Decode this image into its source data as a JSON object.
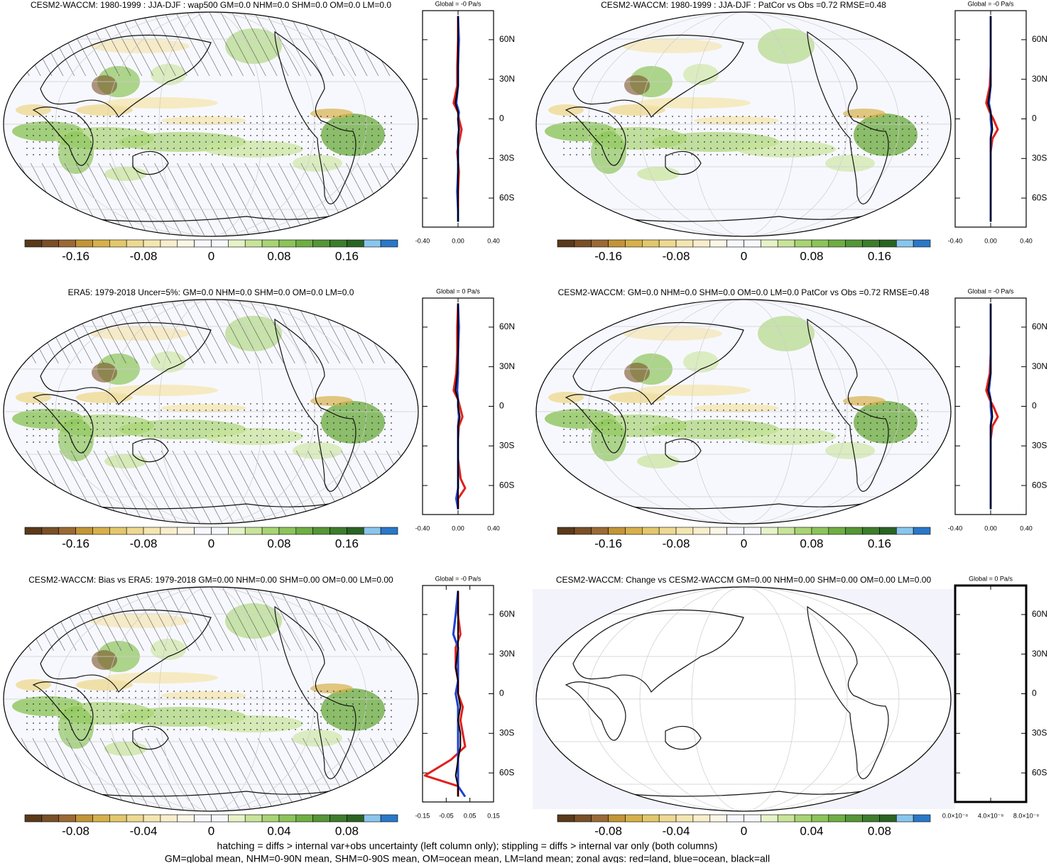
{
  "chart_data": [
    {
      "type": "map",
      "title": "CESM2-WACCM: 1980-1999 : JJA-DJF : wap500 GM=0.0 NHM=0.0 SHM=0.0 OM=0.0 LM=0.0",
      "hatching": true,
      "clim": [
        -0.22,
        0.22
      ],
      "cticks": [
        -0.16,
        -0.08,
        0,
        0.08,
        0.16
      ],
      "zonal": {
        "title": "Global = -0 Pa/s",
        "xlim": [
          -0.4,
          0.4
        ],
        "xticks": [
          {
            "value": -0.4,
            "label": "-0.40"
          },
          {
            "value": 0,
            "label": "0.00"
          },
          {
            "value": 0.4,
            "label": "0.40"
          }
        ],
        "ylim": [
          -82,
          82
        ],
        "yticks": [
          {
            "value": 60,
            "label": "60N"
          },
          {
            "value": 30,
            "label": "30N"
          },
          0,
          {
            "value": -30,
            "label": "30S"
          },
          {
            "value": -60,
            "label": "60S"
          }
        ],
        "lat": [
          78,
          60,
          40,
          25,
          12,
          5,
          0,
          -8,
          -15,
          -25,
          -40,
          -55,
          -70,
          -78
        ],
        "series": [
          {
            "name": "land",
            "color": "#e0201c",
            "values": [
              0,
              0,
              -0.01,
              -0.01,
              -0.05,
              0,
              0.01,
              0.04,
              0.02,
              -0.01,
              0.01,
              0,
              0,
              0
            ]
          },
          {
            "name": "ocean",
            "color": "#1f3fd0",
            "values": [
              0,
              0.01,
              0,
              0,
              -0.02,
              0.01,
              0,
              0.01,
              0,
              0,
              0,
              -0.01,
              0,
              0
            ]
          },
          {
            "name": "all",
            "color": "#000000",
            "values": [
              0,
              0,
              0,
              0,
              -0.03,
              0,
              0,
              0.01,
              0,
              0,
              0,
              0,
              0,
              0
            ]
          }
        ]
      }
    },
    {
      "type": "map",
      "title": "CESM2-WACCM: 1980-1999 : JJA-DJF : PatCor vs Obs =0.72 RMSE=0.48",
      "hatching": false,
      "clim": [
        -0.22,
        0.22
      ],
      "cticks": [
        -0.16,
        -0.08,
        0,
        0.08,
        0.16
      ],
      "zonal": {
        "title": "Global = -0 Pa/s",
        "xlim": [
          -0.4,
          0.4
        ],
        "xticks": [
          {
            "value": -0.4,
            "label": "-0.40"
          },
          {
            "value": 0,
            "label": "0.00"
          },
          {
            "value": 0.4,
            "label": "0.40"
          }
        ],
        "ylim": [
          -82,
          82
        ],
        "yticks": [
          {
            "value": 60,
            "label": "60N"
          },
          {
            "value": 30,
            "label": "30N"
          },
          0,
          {
            "value": -30,
            "label": "30S"
          },
          {
            "value": -60,
            "label": "60S"
          }
        ],
        "lat": [
          78,
          60,
          40,
          25,
          12,
          5,
          0,
          -8,
          -15,
          -25,
          -40,
          -55,
          -70,
          -78
        ],
        "series": [
          {
            "name": "land",
            "color": "#e0201c",
            "values": [
              0,
              0,
              0,
              -0.01,
              -0.05,
              -0.01,
              0.03,
              0.08,
              0.02,
              0,
              0,
              0,
              0,
              0
            ]
          },
          {
            "name": "ocean",
            "color": "#1f3fd0",
            "values": [
              0,
              0,
              0,
              0,
              -0.02,
              0,
              0,
              0.01,
              0,
              0,
              0,
              0,
              0,
              0
            ]
          },
          {
            "name": "all",
            "color": "#000000",
            "values": [
              0,
              0,
              0,
              0,
              -0.03,
              0,
              0.01,
              0.02,
              0,
              0,
              0,
              0,
              0,
              0
            ]
          }
        ]
      }
    },
    {
      "type": "map",
      "title": "ERA5: 1979-2018 Uncer=5%: GM=0.0 NHM=0.0 SHM=0.0 OM=0.0 LM=0.0",
      "hatching": true,
      "clim": [
        -0.22,
        0.22
      ],
      "cticks": [
        -0.16,
        -0.08,
        0,
        0.08,
        0.16
      ],
      "zonal": {
        "title": "Global = 0 Pa/s",
        "xlim": [
          -0.4,
          0.4
        ],
        "xticks": [
          {
            "value": -0.4,
            "label": "-0.40"
          },
          {
            "value": 0,
            "label": "0.00"
          },
          {
            "value": 0.4,
            "label": "0.40"
          }
        ],
        "ylim": [
          -82,
          82
        ],
        "yticks": [
          {
            "value": 60,
            "label": "60N"
          },
          {
            "value": 30,
            "label": "30N"
          },
          0,
          {
            "value": -30,
            "label": "30S"
          },
          {
            "value": -60,
            "label": "60S"
          }
        ],
        "lat": [
          78,
          60,
          40,
          25,
          12,
          5,
          0,
          -8,
          -15,
          -25,
          -40,
          -55,
          -62,
          -70,
          -78
        ],
        "series": [
          {
            "name": "land",
            "color": "#e0201c",
            "values": [
              0,
              -0.01,
              -0.01,
              -0.02,
              -0.05,
              0,
              0.02,
              0.05,
              0.01,
              0,
              0,
              0.03,
              0.08,
              0,
              0
            ]
          },
          {
            "name": "ocean",
            "color": "#1f3fd0",
            "values": [
              0,
              0.01,
              0,
              0,
              -0.01,
              0,
              0,
              0.01,
              0,
              0,
              0,
              0,
              0,
              -0.02,
              0
            ]
          },
          {
            "name": "all",
            "color": "#000000",
            "values": [
              0,
              0,
              0,
              -0.01,
              -0.03,
              0,
              0,
              0.02,
              0,
              0,
              0,
              0,
              0,
              0,
              0
            ]
          }
        ]
      }
    },
    {
      "type": "map",
      "title": "CESM2-WACCM: GM=0.0 NHM=0.0 SHM=0.0 OM=0.0 LM=0.0 PatCor vs Obs =0.72 RMSE=0.48",
      "hatching": false,
      "clim": [
        -0.22,
        0.22
      ],
      "cticks": [
        -0.16,
        -0.08,
        0,
        0.08,
        0.16
      ],
      "zonal": {
        "title": "Global = -0 Pa/s",
        "xlim": [
          -0.4,
          0.4
        ],
        "xticks": [
          {
            "value": -0.4,
            "label": "-0.40"
          },
          {
            "value": 0,
            "label": "0.00"
          },
          {
            "value": 0.4,
            "label": "0.40"
          }
        ],
        "ylim": [
          -82,
          82
        ],
        "yticks": [
          {
            "value": 60,
            "label": "60N"
          },
          {
            "value": 30,
            "label": "30N"
          },
          0,
          {
            "value": -30,
            "label": "30S"
          },
          {
            "value": -60,
            "label": "60S"
          }
        ],
        "lat": [
          78,
          60,
          40,
          25,
          12,
          5,
          0,
          -8,
          -15,
          -25,
          -40,
          -55,
          -70,
          -78
        ],
        "series": [
          {
            "name": "land",
            "color": "#e0201c",
            "values": [
              0,
              0,
              0,
              -0.01,
              -0.05,
              -0.01,
              0.03,
              0.08,
              0.02,
              0,
              0,
              0,
              0,
              0
            ]
          },
          {
            "name": "ocean",
            "color": "#1f3fd0",
            "values": [
              0,
              0,
              0,
              0,
              -0.02,
              0,
              0,
              0.01,
              0,
              0,
              0,
              0,
              0,
              0
            ]
          },
          {
            "name": "all",
            "color": "#000000",
            "values": [
              0,
              0,
              0,
              0,
              -0.03,
              0,
              0.01,
              0.02,
              0,
              0,
              0,
              0,
              0,
              0
            ]
          }
        ]
      }
    },
    {
      "type": "map",
      "title": "CESM2-WACCM: Bias vs ERA5: 1979-2018 GM=0.00 NHM=0.00 SHM=0.00 OM=0.00 LM=0.00",
      "hatching": true,
      "clim": [
        -0.11,
        0.11
      ],
      "cticks": [
        -0.08,
        -0.04,
        0,
        0.04,
        0.08
      ],
      "zonal": {
        "title": "Global = -0 Pa/s",
        "xlim": [
          -0.15,
          0.15
        ],
        "xticks": [
          {
            "value": -0.15,
            "label": "-0.15"
          },
          {
            "value": -0.05,
            "label": "-0.05"
          },
          {
            "value": 0.05,
            "label": "0.05"
          },
          {
            "value": 0.15,
            "label": "0.15"
          }
        ],
        "ylim": [
          -82,
          82
        ],
        "yticks": [
          {
            "value": 60,
            "label": "60N"
          },
          {
            "value": 30,
            "label": "30N"
          },
          0,
          {
            "value": -30,
            "label": "30S"
          },
          {
            "value": -60,
            "label": "60S"
          }
        ],
        "lat": [
          78,
          60,
          45,
          35,
          20,
          10,
          0,
          -10,
          -20,
          -30,
          -40,
          -50,
          -62,
          -70,
          -78
        ],
        "series": [
          {
            "name": "land",
            "color": "#e0201c",
            "values": [
              0,
              0,
              0.01,
              -0.01,
              -0.01,
              0,
              0,
              0.02,
              0.01,
              0.02,
              0.03,
              -0.03,
              -0.14,
              0,
              0
            ]
          },
          {
            "name": "ocean",
            "color": "#1f3fd0",
            "values": [
              0,
              -0.01,
              -0.02,
              0,
              0,
              0,
              -0.01,
              0,
              0,
              0,
              0,
              0,
              0,
              0,
              0.03
            ]
          },
          {
            "name": "all",
            "color": "#000000",
            "values": [
              0,
              0,
              0,
              0,
              -0.01,
              0,
              0,
              0.01,
              0,
              0.01,
              0.01,
              0,
              -0.01,
              0,
              0
            ]
          }
        ]
      }
    },
    {
      "type": "map",
      "title": "CESM2-WACCM: Change vs CESM2-WACCM GM=0.00 NHM=0.00 SHM=0.00 OM=0.00 LM=0.00",
      "hatching": false,
      "empty": true,
      "clim": [
        -0.11,
        0.11
      ],
      "cticks": [
        -0.08,
        -0.04,
        0,
        0.04,
        0.08
      ],
      "zonal": {
        "title": "Global = 0 Pa/s",
        "xlim": [
          0,
          8e-08
        ],
        "xticks": [
          {
            "value": 0,
            "label": "0.0×10⁻⁸"
          },
          {
            "value": 4e-08,
            "label": "4.0×10⁻⁸"
          },
          {
            "value": 8e-08,
            "label": "8.0×10⁻⁸"
          }
        ],
        "ylim": [
          -82,
          82
        ],
        "yticks": [
          {
            "value": 60,
            "label": "60N"
          },
          {
            "value": 30,
            "label": "30N"
          },
          0,
          {
            "value": -30,
            "label": "30S"
          },
          {
            "value": -60,
            "label": "60S"
          }
        ],
        "lat": [],
        "series": []
      }
    }
  ],
  "colors": [
    "#5a3a1a",
    "#7a5028",
    "#9a6a35",
    "#c29538",
    "#d6b04a",
    "#e3c76c",
    "#eed992",
    "#f4e6b2",
    "#f8eecc",
    "#fbf6e6",
    "#f7f8fd",
    "#f7f8fd",
    "#e6f2c8",
    "#c8e49a",
    "#a8d474",
    "#8cc45a",
    "#6fae45",
    "#559637",
    "#3e7d2d",
    "#2a6424",
    "#8ac6ec",
    "#2a78c8"
  ],
  "footer": [
    "hatching = diffs > internal var+obs uncertainty (left column only); stippling = diffs > internal var only (both columns)",
    "GM=global mean, NHM=0-90N mean, SHM=0-90S mean, OM=ocean mean, LM=land mean; zonal avgs: red=land, blue=ocean, black=all"
  ]
}
